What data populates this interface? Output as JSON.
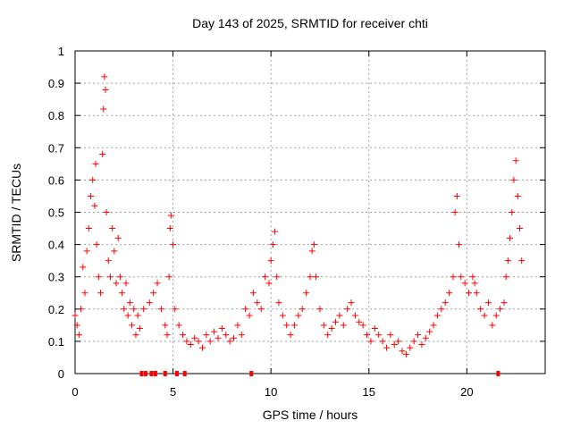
{
  "chart_data": {
    "type": "scatter",
    "title": "Day 143 of 2025, SRMTID for receiver chti",
    "xlabel": "GPS time / hours",
    "ylabel": "SRMTID / TECUs",
    "xlim": [
      0,
      24
    ],
    "ylim": [
      0,
      1
    ],
    "xticks": [
      0,
      5,
      10,
      15,
      20
    ],
    "xtick_labels": [
      "0",
      "5",
      "10",
      "15",
      "20"
    ],
    "yticks": [
      0,
      0.1,
      0.2,
      0.3,
      0.4,
      0.5,
      0.6,
      0.7,
      0.8,
      0.9,
      1
    ],
    "ytick_labels": [
      "0",
      "0.1",
      "0.2",
      "0.3",
      "0.4",
      "0.5",
      "0.6",
      "0.7",
      "0.8",
      "0.9",
      "1"
    ],
    "grid": true,
    "marker": "+",
    "color": "#ff0000",
    "series": [
      {
        "name": "SRMTID",
        "x": [
          0.0,
          0.1,
          0.2,
          0.3,
          0.4,
          0.5,
          0.6,
          0.7,
          0.8,
          0.9,
          1.0,
          1.05,
          1.1,
          1.2,
          1.3,
          1.4,
          1.45,
          1.5,
          1.55,
          1.6,
          1.7,
          1.8,
          1.9,
          2.0,
          2.1,
          2.2,
          2.3,
          2.4,
          2.5,
          2.6,
          2.7,
          2.8,
          2.9,
          3.0,
          3.1,
          3.2,
          3.3,
          3.5,
          3.8,
          4.0,
          4.2,
          4.4,
          4.6,
          4.7,
          4.8,
          4.85,
          4.9,
          5.0,
          5.1,
          5.3,
          5.5,
          5.7,
          5.9,
          6.1,
          6.3,
          6.5,
          6.7,
          6.9,
          7.1,
          7.3,
          7.5,
          7.7,
          7.9,
          8.1,
          8.3,
          8.5,
          8.7,
          8.9,
          9.1,
          9.3,
          9.5,
          9.7,
          9.9,
          10.0,
          10.1,
          10.2,
          10.3,
          10.4,
          10.6,
          10.8,
          11.0,
          11.2,
          11.4,
          11.6,
          11.8,
          12.0,
          12.1,
          12.2,
          12.3,
          12.5,
          12.7,
          12.9,
          13.1,
          13.3,
          13.5,
          13.7,
          13.9,
          14.1,
          14.3,
          14.5,
          14.7,
          14.9,
          15.1,
          15.3,
          15.5,
          15.7,
          15.9,
          16.1,
          16.3,
          16.5,
          16.7,
          16.9,
          17.1,
          17.3,
          17.5,
          17.7,
          17.9,
          18.1,
          18.3,
          18.5,
          18.7,
          18.9,
          19.1,
          19.3,
          19.4,
          19.5,
          19.6,
          19.7,
          19.9,
          20.1,
          20.3,
          20.4,
          20.5,
          20.7,
          20.9,
          21.1,
          21.3,
          21.5,
          21.7,
          21.9,
          22.0,
          22.1,
          22.2,
          22.3,
          22.4,
          22.5,
          22.6,
          22.7,
          22.8
        ],
        "y": [
          0.18,
          0.15,
          0.12,
          0.2,
          0.33,
          0.25,
          0.38,
          0.45,
          0.55,
          0.6,
          0.52,
          0.65,
          0.4,
          0.3,
          0.25,
          0.68,
          0.82,
          0.92,
          0.88,
          0.5,
          0.35,
          0.3,
          0.45,
          0.38,
          0.28,
          0.42,
          0.3,
          0.25,
          0.2,
          0.28,
          0.18,
          0.22,
          0.15,
          0.2,
          0.12,
          0.18,
          0.14,
          0.2,
          0.22,
          0.25,
          0.28,
          0.2,
          0.15,
          0.12,
          0.3,
          0.45,
          0.49,
          0.4,
          0.2,
          0.15,
          0.12,
          0.1,
          0.09,
          0.11,
          0.1,
          0.08,
          0.12,
          0.1,
          0.13,
          0.11,
          0.14,
          0.12,
          0.1,
          0.11,
          0.15,
          0.12,
          0.2,
          0.18,
          0.25,
          0.22,
          0.2,
          0.3,
          0.28,
          0.35,
          0.4,
          0.44,
          0.3,
          0.22,
          0.18,
          0.15,
          0.12,
          0.15,
          0.18,
          0.2,
          0.25,
          0.3,
          0.38,
          0.4,
          0.3,
          0.2,
          0.15,
          0.12,
          0.14,
          0.16,
          0.18,
          0.15,
          0.2,
          0.22,
          0.18,
          0.16,
          0.15,
          0.12,
          0.1,
          0.14,
          0.12,
          0.1,
          0.08,
          0.12,
          0.09,
          0.1,
          0.07,
          0.06,
          0.08,
          0.1,
          0.12,
          0.09,
          0.11,
          0.13,
          0.15,
          0.18,
          0.2,
          0.22,
          0.25,
          0.3,
          0.5,
          0.55,
          0.4,
          0.3,
          0.28,
          0.25,
          0.3,
          0.28,
          0.25,
          0.2,
          0.18,
          0.22,
          0.15,
          0.18,
          0.2,
          0.22,
          0.3,
          0.35,
          0.42,
          0.5,
          0.6,
          0.66,
          0.55,
          0.45,
          0.35
        ]
      }
    ],
    "gap_markers_x": [
      3.4,
      3.6,
      3.9,
      4.1,
      4.6,
      5.2,
      5.6,
      9.0,
      21.6
    ]
  }
}
